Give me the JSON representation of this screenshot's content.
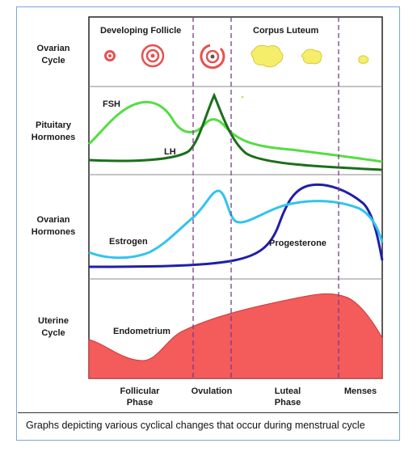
{
  "ovarian_cycle": {
    "row_label": [
      "Ovarian",
      "Cycle"
    ],
    "developing_follicle": "Developing Follicle",
    "corpus_luteum": "Corpus Luteum"
  },
  "pituitary": {
    "row_label": [
      "Pituitary",
      "Hormones"
    ],
    "fsh": "FSH",
    "lh": "LH"
  },
  "ovarian_hormones": {
    "row_label": [
      "Ovarian",
      "Hormones"
    ],
    "estrogen": "Estrogen",
    "progesterone": "Progesterone"
  },
  "uterine": {
    "row_label": [
      "Uterine",
      "Cycle"
    ],
    "endometrium": "Endometrium"
  },
  "phases": {
    "follicular": [
      "Follicular",
      "Phase"
    ],
    "ovulation": "Ovulation",
    "luteal": [
      "Luteal",
      "Phase"
    ],
    "menses": "Menses"
  },
  "caption": "Graphs depicting various cyclical changes that occur during menstrual cycle",
  "colors": {
    "fsh": "#55dd44",
    "lh": "#1b6f1b",
    "estrogen": "#33c3ee",
    "progesterone": "#1f1fa8",
    "endometrium": "#f45b5b",
    "follicle": "#e85050",
    "corpus_luteum": "#f5ee6a",
    "divider": "#7a3c8c"
  }
}
